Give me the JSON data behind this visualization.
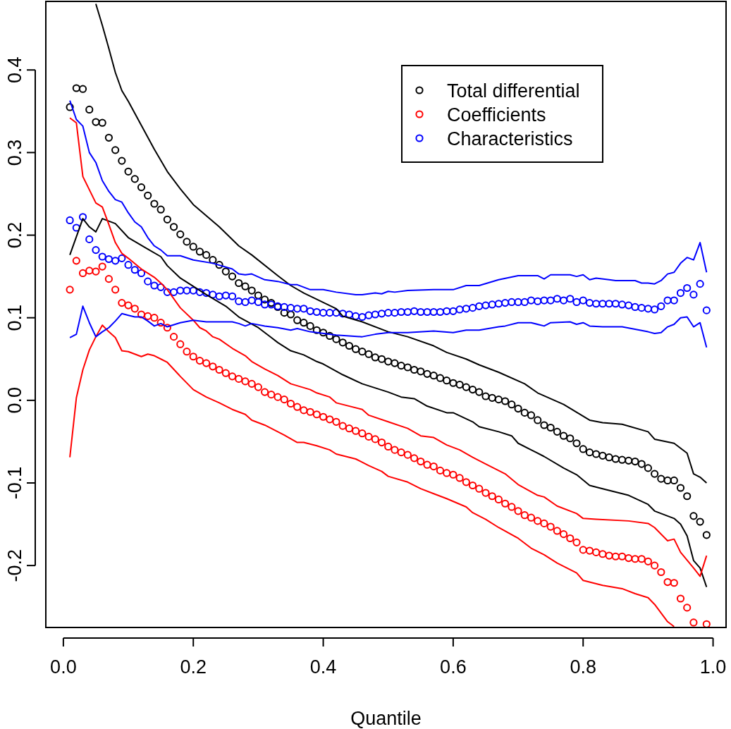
{
  "chart_data": {
    "type": "scatter",
    "xlabel": "Quantile",
    "marker": "circle",
    "legend": "top right",
    "xlim": [
      -0.027,
      1.02
    ],
    "ylim": [
      -0.275,
      0.483
    ],
    "xticks": [
      {
        "value": 0,
        "label": "0.0"
      },
      0.2,
      0.4,
      0.6,
      0.8,
      {
        "value": 1,
        "label": "1.0"
      }
    ],
    "yticks": [
      -0.2,
      -0.1,
      {
        "value": 0,
        "label": "0.0"
      },
      0.1,
      0.2,
      0.3,
      0.4
    ],
    "x": [
      0.01,
      0.02,
      0.03,
      0.04,
      0.05,
      0.06,
      0.07,
      0.08,
      0.09,
      0.1,
      0.11,
      0.12,
      0.13,
      0.14,
      0.15,
      0.16,
      0.17,
      0.18,
      0.19,
      0.2,
      0.21,
      0.22,
      0.23,
      0.24,
      0.25,
      0.26,
      0.27,
      0.28,
      0.29,
      0.3,
      0.31,
      0.32,
      0.33,
      0.34,
      0.35,
      0.36,
      0.37,
      0.38,
      0.39,
      0.4,
      0.41,
      0.42,
      0.43,
      0.44,
      0.45,
      0.46,
      0.47,
      0.48,
      0.49,
      0.5,
      0.51,
      0.52,
      0.53,
      0.54,
      0.55,
      0.56,
      0.57,
      0.58,
      0.59,
      0.6,
      0.61,
      0.62,
      0.63,
      0.64,
      0.65,
      0.66,
      0.67,
      0.68,
      0.69,
      0.7,
      0.71,
      0.72,
      0.73,
      0.74,
      0.75,
      0.76,
      0.77,
      0.78,
      0.79,
      0.8,
      0.81,
      0.82,
      0.83,
      0.84,
      0.85,
      0.86,
      0.87,
      0.88,
      0.89,
      0.9,
      0.91,
      0.92,
      0.93,
      0.94,
      0.95,
      0.96,
      0.97,
      0.98,
      0.99
    ],
    "series": [
      {
        "name": "Total differential",
        "color": "#000000",
        "values": [
          0.355,
          0.378,
          0.377,
          0.352,
          0.337,
          0.336,
          0.318,
          0.303,
          0.29,
          0.277,
          0.268,
          0.258,
          0.248,
          0.238,
          0.231,
          0.219,
          0.21,
          0.201,
          0.192,
          0.186,
          0.18,
          0.176,
          0.17,
          0.164,
          0.156,
          0.15,
          0.142,
          0.138,
          0.133,
          0.127,
          0.122,
          0.118,
          0.113,
          0.106,
          0.104,
          0.097,
          0.094,
          0.09,
          0.085,
          0.082,
          0.078,
          0.074,
          0.07,
          0.066,
          0.062,
          0.059,
          0.056,
          0.052,
          0.05,
          0.047,
          0.045,
          0.042,
          0.04,
          0.037,
          0.035,
          0.032,
          0.03,
          0.027,
          0.024,
          0.021,
          0.019,
          0.016,
          0.013,
          0.01,
          0.005,
          0.003,
          0.001,
          -0.001,
          -0.005,
          -0.01,
          -0.015,
          -0.018,
          -0.024,
          -0.03,
          -0.033,
          -0.038,
          -0.043,
          -0.046,
          -0.052,
          -0.059,
          -0.063,
          -0.065,
          -0.067,
          -0.069,
          -0.071,
          -0.072,
          -0.073,
          -0.074,
          -0.077,
          -0.082,
          -0.089,
          -0.095,
          -0.097,
          -0.097,
          -0.106,
          -0.116,
          -0.14,
          -0.147,
          -0.163
        ]
      },
      {
        "name": "Coefficients",
        "color": "#ff0000",
        "values": [
          0.134,
          0.169,
          0.154,
          0.157,
          0.156,
          0.162,
          0.147,
          0.134,
          0.118,
          0.115,
          0.111,
          0.104,
          0.102,
          0.1,
          0.094,
          0.088,
          0.077,
          0.068,
          0.059,
          0.053,
          0.048,
          0.045,
          0.041,
          0.037,
          0.033,
          0.029,
          0.026,
          0.023,
          0.02,
          0.016,
          0.01,
          0.007,
          0.004,
          0.001,
          -0.004,
          -0.008,
          -0.012,
          -0.014,
          -0.017,
          -0.02,
          -0.023,
          -0.026,
          -0.031,
          -0.034,
          -0.037,
          -0.04,
          -0.044,
          -0.047,
          -0.051,
          -0.056,
          -0.06,
          -0.063,
          -0.066,
          -0.07,
          -0.074,
          -0.078,
          -0.08,
          -0.085,
          -0.088,
          -0.09,
          -0.094,
          -0.099,
          -0.103,
          -0.107,
          -0.112,
          -0.116,
          -0.12,
          -0.125,
          -0.129,
          -0.134,
          -0.139,
          -0.142,
          -0.146,
          -0.149,
          -0.153,
          -0.158,
          -0.162,
          -0.167,
          -0.172,
          -0.181,
          -0.182,
          -0.184,
          -0.186,
          -0.188,
          -0.189,
          -0.189,
          -0.191,
          -0.192,
          -0.192,
          -0.195,
          -0.2,
          -0.208,
          -0.22,
          -0.221,
          -0.24,
          -0.251,
          -0.269,
          null,
          -0.271
        ]
      },
      {
        "name": "Characteristics",
        "color": "#0000ff",
        "values": [
          0.218,
          0.209,
          0.222,
          0.195,
          0.182,
          0.174,
          0.171,
          0.169,
          0.172,
          0.164,
          0.158,
          0.154,
          0.144,
          0.139,
          0.137,
          0.131,
          0.131,
          0.133,
          0.133,
          0.133,
          0.131,
          0.13,
          0.128,
          0.126,
          0.127,
          0.126,
          0.12,
          0.119,
          0.121,
          0.119,
          0.116,
          0.116,
          0.114,
          0.113,
          0.112,
          0.111,
          0.111,
          0.108,
          0.107,
          0.106,
          0.106,
          0.106,
          0.105,
          0.104,
          0.102,
          0.101,
          0.103,
          0.104,
          0.105,
          0.106,
          0.106,
          0.107,
          0.107,
          0.108,
          0.107,
          0.107,
          0.107,
          0.107,
          0.108,
          0.108,
          0.11,
          0.111,
          0.112,
          0.114,
          0.115,
          0.116,
          0.117,
          0.118,
          0.119,
          0.119,
          0.119,
          0.121,
          0.12,
          0.121,
          0.121,
          0.123,
          0.121,
          0.123,
          0.119,
          0.121,
          0.118,
          0.117,
          0.117,
          0.117,
          0.117,
          0.116,
          0.115,
          0.113,
          0.112,
          0.111,
          0.11,
          0.114,
          0.121,
          0.121,
          0.13,
          0.136,
          0.128,
          0.141,
          0.109
        ]
      },
      {
        "type": "line",
        "marker": "none",
        "color": "#000000",
        "x": [
          0.05,
          0.06,
          0.07,
          0.08,
          0.09,
          0.1,
          0.12,
          0.14,
          0.16,
          0.18,
          0.2,
          0.24,
          0.27,
          0.29,
          0.33,
          0.35,
          0.37,
          0.42,
          0.43,
          0.46,
          0.5,
          0.53,
          0.57,
          0.59,
          0.62,
          0.64,
          0.67,
          0.71,
          0.73,
          0.77,
          0.81,
          0.83,
          0.86,
          0.9,
          0.91,
          0.94,
          0.96,
          0.97,
          0.98,
          0.99
        ],
        "values": [
          0.48,
          0.454,
          0.426,
          0.397,
          0.375,
          0.362,
          0.333,
          0.304,
          0.277,
          0.256,
          0.237,
          0.21,
          0.187,
          0.176,
          0.151,
          0.139,
          0.13,
          0.111,
          0.102,
          0.095,
          0.083,
          0.077,
          0.066,
          0.058,
          0.05,
          0.043,
          0.034,
          0.02,
          0.009,
          -0.005,
          -0.024,
          -0.027,
          -0.029,
          -0.038,
          -0.047,
          -0.052,
          -0.064,
          -0.089,
          -0.093,
          -0.1
        ]
      },
      {
        "type": "line",
        "marker": "none",
        "color": "#000000",
        "x": [
          0.01,
          0.03,
          0.04,
          0.05,
          0.06,
          0.08,
          0.1,
          0.13,
          0.15,
          0.16,
          0.18,
          0.22,
          0.25,
          0.27,
          0.3,
          0.32,
          0.33,
          0.35,
          0.37,
          0.39,
          0.4,
          0.43,
          0.46,
          0.5,
          0.52,
          0.54,
          0.56,
          0.59,
          0.6,
          0.63,
          0.64,
          0.67,
          0.69,
          0.7,
          0.72,
          0.74,
          0.77,
          0.79,
          0.81,
          0.83,
          0.87,
          0.9,
          0.91,
          0.94,
          0.95,
          0.96,
          0.97,
          0.98,
          0.99
        ],
        "values": [
          0.176,
          0.22,
          0.21,
          0.204,
          0.22,
          0.214,
          0.197,
          0.183,
          0.174,
          0.163,
          0.148,
          0.128,
          0.114,
          0.101,
          0.088,
          0.076,
          0.07,
          0.06,
          0.055,
          0.047,
          0.044,
          0.031,
          0.02,
          0.01,
          0.004,
          0.002,
          -0.007,
          -0.015,
          -0.015,
          -0.026,
          -0.032,
          -0.038,
          -0.043,
          -0.052,
          -0.06,
          -0.068,
          -0.082,
          -0.09,
          -0.103,
          -0.107,
          -0.115,
          -0.126,
          -0.134,
          -0.143,
          -0.15,
          -0.164,
          -0.194,
          -0.203,
          -0.226
        ]
      },
      {
        "type": "line",
        "marker": "none",
        "color": "#ff0000",
        "x": [
          0.01,
          0.02,
          0.03,
          0.04,
          0.05,
          0.06,
          0.07,
          0.08,
          0.09,
          0.1,
          0.12,
          0.14,
          0.15,
          0.16,
          0.18,
          0.2,
          0.21,
          0.22,
          0.23,
          0.24,
          0.26,
          0.28,
          0.29,
          0.31,
          0.33,
          0.35,
          0.38,
          0.39,
          0.41,
          0.42,
          0.46,
          0.47,
          0.5,
          0.53,
          0.55,
          0.57,
          0.59,
          0.61,
          0.63,
          0.65,
          0.68,
          0.7,
          0.73,
          0.74,
          0.76,
          0.79,
          0.8,
          0.82,
          0.87,
          0.9,
          0.91,
          0.93,
          0.94,
          0.95,
          0.97,
          0.98,
          0.99
        ],
        "values": [
          0.342,
          0.336,
          0.271,
          0.255,
          0.239,
          0.234,
          0.213,
          0.191,
          0.178,
          0.172,
          0.159,
          0.149,
          0.142,
          0.134,
          0.112,
          0.097,
          0.088,
          0.084,
          0.077,
          0.074,
          0.063,
          0.054,
          0.047,
          0.038,
          0.03,
          0.02,
          0.013,
          0.009,
          0.004,
          -0.003,
          -0.011,
          -0.018,
          -0.026,
          -0.034,
          -0.043,
          -0.045,
          -0.054,
          -0.06,
          -0.069,
          -0.077,
          -0.089,
          -0.102,
          -0.115,
          -0.117,
          -0.128,
          -0.137,
          -0.143,
          -0.144,
          -0.146,
          -0.149,
          -0.154,
          -0.17,
          -0.168,
          -0.184,
          -0.203,
          -0.213,
          -0.188
        ]
      },
      {
        "type": "line",
        "marker": "none",
        "color": "#ff0000",
        "x": [
          0.01,
          0.02,
          0.03,
          0.04,
          0.05,
          0.06,
          0.07,
          0.08,
          0.09,
          0.1,
          0.12,
          0.13,
          0.14,
          0.15,
          0.16,
          0.18,
          0.2,
          0.22,
          0.24,
          0.26,
          0.28,
          0.29,
          0.31,
          0.34,
          0.36,
          0.37,
          0.39,
          0.41,
          0.42,
          0.45,
          0.47,
          0.49,
          0.5,
          0.53,
          0.55,
          0.57,
          0.59,
          0.62,
          0.63,
          0.65,
          0.67,
          0.7,
          0.72,
          0.74,
          0.76,
          0.79,
          0.8,
          0.83,
          0.86,
          0.88,
          0.9,
          0.91,
          0.93,
          0.94
        ],
        "values": [
          -0.069,
          0.003,
          0.037,
          0.061,
          0.077,
          0.091,
          0.083,
          0.076,
          0.06,
          0.059,
          0.053,
          0.056,
          0.054,
          0.05,
          0.046,
          0.029,
          0.013,
          0.004,
          -0.003,
          -0.011,
          -0.017,
          -0.024,
          -0.03,
          -0.042,
          -0.051,
          -0.051,
          -0.055,
          -0.06,
          -0.065,
          -0.071,
          -0.079,
          -0.086,
          -0.092,
          -0.099,
          -0.107,
          -0.113,
          -0.119,
          -0.129,
          -0.136,
          -0.144,
          -0.154,
          -0.167,
          -0.179,
          -0.187,
          -0.197,
          -0.209,
          -0.218,
          -0.224,
          -0.228,
          -0.234,
          -0.239,
          -0.247,
          -0.268,
          -0.274
        ]
      },
      {
        "type": "line",
        "marker": "none",
        "color": "#0000ff",
        "x": [
          0.01,
          0.02,
          0.03,
          0.04,
          0.05,
          0.06,
          0.07,
          0.08,
          0.09,
          0.1,
          0.11,
          0.12,
          0.13,
          0.14,
          0.15,
          0.16,
          0.18,
          0.2,
          0.23,
          0.26,
          0.27,
          0.28,
          0.29,
          0.31,
          0.33,
          0.35,
          0.36,
          0.38,
          0.4,
          0.42,
          0.45,
          0.46,
          0.48,
          0.49,
          0.5,
          0.51,
          0.53,
          0.57,
          0.6,
          0.62,
          0.64,
          0.67,
          0.7,
          0.73,
          0.74,
          0.75,
          0.78,
          0.79,
          0.8,
          0.81,
          0.82,
          0.84,
          0.85,
          0.88,
          0.89,
          0.9,
          0.91,
          0.92,
          0.93,
          0.94,
          0.95,
          0.96,
          0.97,
          0.98,
          0.99
        ],
        "values": [
          0.363,
          0.34,
          0.332,
          0.3,
          0.288,
          0.266,
          0.253,
          0.243,
          0.24,
          0.227,
          0.216,
          0.21,
          0.197,
          0.187,
          0.182,
          0.175,
          0.175,
          0.17,
          0.166,
          0.159,
          0.153,
          0.152,
          0.153,
          0.146,
          0.144,
          0.14,
          0.14,
          0.134,
          0.134,
          0.131,
          0.128,
          0.128,
          0.13,
          0.129,
          0.132,
          0.131,
          0.133,
          0.134,
          0.134,
          0.139,
          0.139,
          0.146,
          0.151,
          0.151,
          0.147,
          0.152,
          0.152,
          0.15,
          0.152,
          0.146,
          0.148,
          0.146,
          0.145,
          0.145,
          0.142,
          0.142,
          0.141,
          0.145,
          0.153,
          0.155,
          0.166,
          0.173,
          0.17,
          0.191,
          0.155
        ]
      },
      {
        "type": "line",
        "marker": "none",
        "color": "#0000ff",
        "x": [
          0.01,
          0.02,
          0.03,
          0.04,
          0.05,
          0.06,
          0.07,
          0.08,
          0.09,
          0.1,
          0.11,
          0.12,
          0.13,
          0.14,
          0.15,
          0.16,
          0.18,
          0.2,
          0.22,
          0.26,
          0.27,
          0.28,
          0.29,
          0.31,
          0.33,
          0.35,
          0.36,
          0.38,
          0.42,
          0.46,
          0.48,
          0.5,
          0.53,
          0.57,
          0.6,
          0.62,
          0.64,
          0.67,
          0.68,
          0.7,
          0.72,
          0.74,
          0.75,
          0.78,
          0.79,
          0.8,
          0.81,
          0.83,
          0.86,
          0.88,
          0.9,
          0.91,
          0.92,
          0.93,
          0.94,
          0.95,
          0.96,
          0.97,
          0.98,
          0.99
        ],
        "values": [
          0.076,
          0.08,
          0.114,
          0.094,
          0.077,
          0.083,
          0.088,
          0.096,
          0.105,
          0.103,
          0.101,
          0.101,
          0.096,
          0.09,
          0.093,
          0.089,
          0.094,
          0.097,
          0.095,
          0.095,
          0.093,
          0.09,
          0.093,
          0.09,
          0.088,
          0.085,
          0.087,
          0.083,
          0.079,
          0.077,
          0.08,
          0.082,
          0.082,
          0.084,
          0.082,
          0.085,
          0.085,
          0.089,
          0.09,
          0.094,
          0.094,
          0.09,
          0.094,
          0.095,
          0.092,
          0.094,
          0.09,
          0.089,
          0.089,
          0.086,
          0.083,
          0.081,
          0.082,
          0.089,
          0.092,
          0.1,
          0.101,
          0.089,
          0.094,
          0.064
        ]
      }
    ]
  }
}
